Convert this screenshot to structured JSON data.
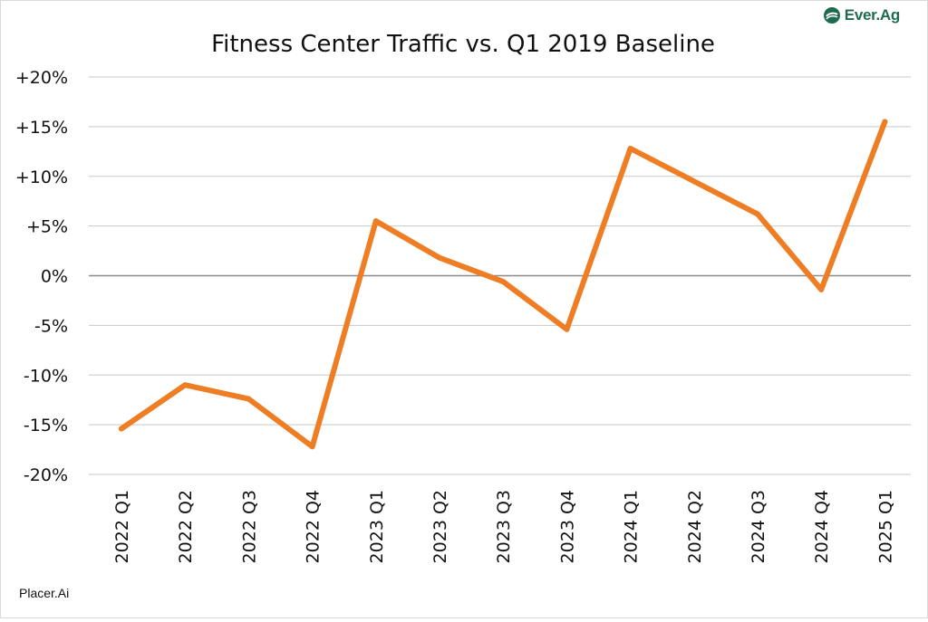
{
  "brand": {
    "logo_text": "Ever.Ag",
    "logo_icon": "ever-ag-leaf-icon",
    "color": "#1f6b4e"
  },
  "source_label": "Placer.Ai",
  "colors": {
    "line": "#ee7d24",
    "grid": "#c8c8c8",
    "zero_line": "#8c8c8c",
    "text": "#111111"
  },
  "chart_data": {
    "type": "line",
    "title": "Fitness Center Traffic vs. Q1 2019 Baseline",
    "xlabel": "",
    "ylabel": "",
    "categories": [
      "2022 Q1",
      "2022 Q2",
      "2022 Q3",
      "2022 Q4",
      "2023 Q1",
      "2023 Q2",
      "2023 Q3",
      "2023 Q4",
      "2024 Q1",
      "2024 Q2",
      "2024 Q3",
      "2024 Q4",
      "2025 Q1"
    ],
    "series": [
      {
        "values": [
          -15.4,
          -11.0,
          -12.4,
          -17.2,
          5.5,
          1.8,
          -0.6,
          -5.4,
          12.8,
          9.5,
          6.2,
          -1.4,
          15.5
        ]
      }
    ],
    "ylim": [
      -20,
      20
    ],
    "yticks": [
      20,
      15,
      10,
      5,
      0,
      -5,
      -10,
      -15,
      -20
    ],
    "ytick_labels": [
      "+20%",
      "+15%",
      "+10%",
      "+5%",
      "0%",
      "-5%",
      "-10%",
      "-15%",
      "-20%"
    ],
    "grid": true,
    "legend": "none"
  }
}
